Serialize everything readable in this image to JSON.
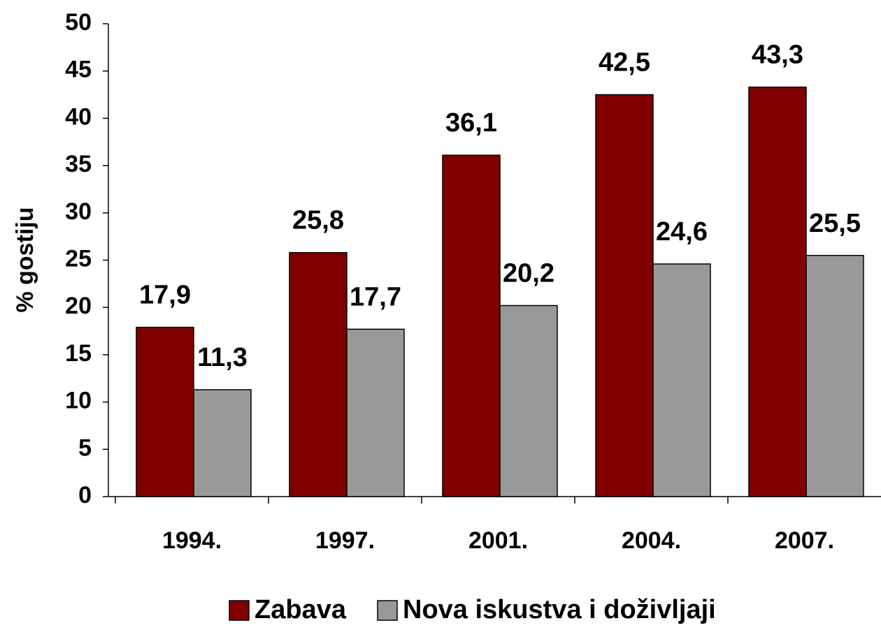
{
  "chart_data": {
    "type": "bar",
    "ylabel": "% gostiju",
    "categories": [
      "1994.",
      "1997.",
      "2001.",
      "2004.",
      "2007."
    ],
    "series": [
      {
        "name": "Zabava",
        "color": "#800000",
        "values": [
          17.9,
          25.8,
          36.1,
          42.5,
          43.3
        ],
        "value_labels": [
          "17,9",
          "25,8",
          "36,1",
          "42,5",
          "43,3"
        ]
      },
      {
        "name": "Nova iskustva i doživljaji",
        "color": "#999999",
        "values": [
          11.3,
          17.7,
          20.2,
          24.6,
          25.5
        ],
        "value_labels": [
          "11,3",
          "17,7",
          "20,2",
          "24,6",
          "25,5"
        ]
      }
    ],
    "ylim": [
      0,
      50
    ],
    "yticks": [
      0,
      5,
      10,
      15,
      20,
      25,
      30,
      35,
      40,
      45,
      50
    ],
    "grid": false,
    "legend": "bottom"
  }
}
